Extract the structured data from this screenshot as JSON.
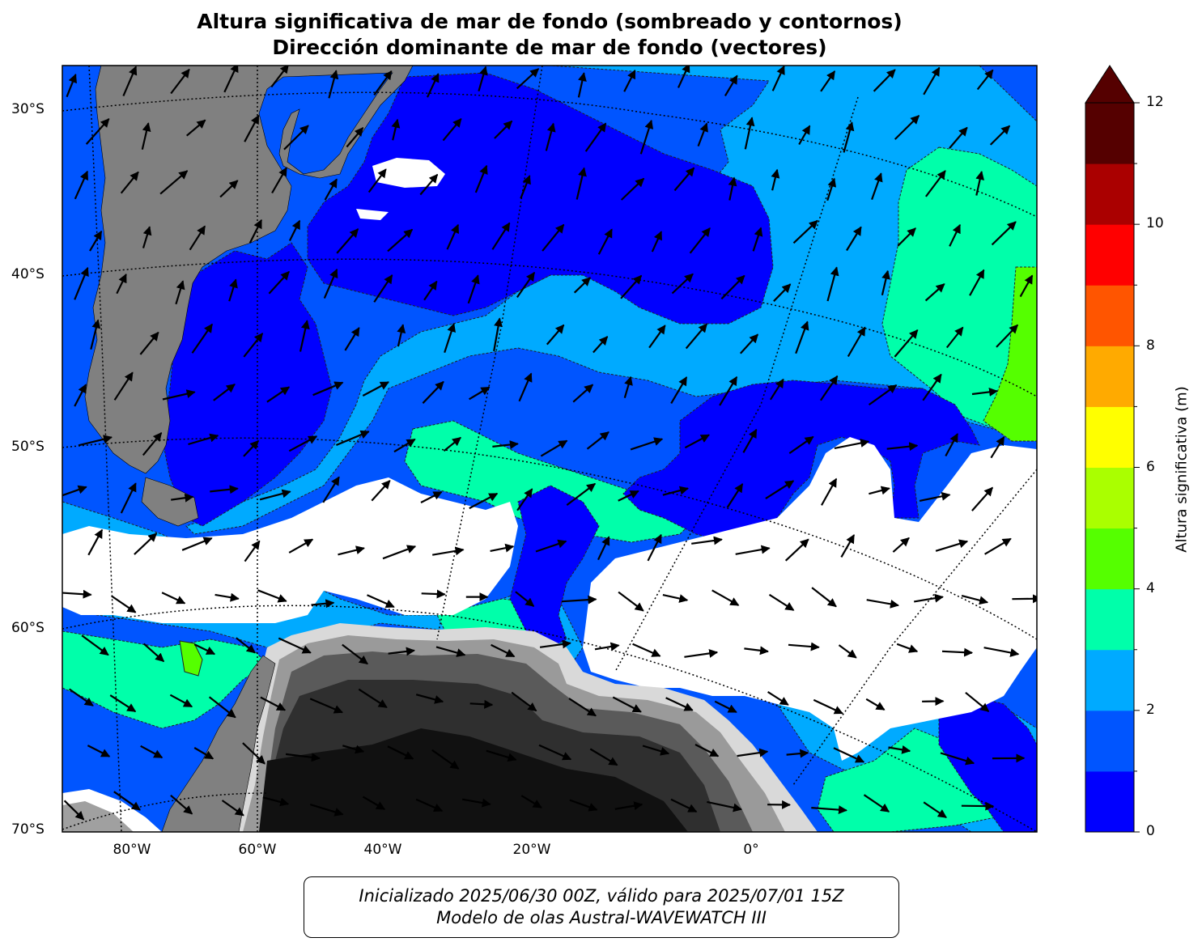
{
  "title": {
    "line1": "Altura significativa de mar de fondo (sombreado y contornos)",
    "line2": "Dirección dominante de mar de fondo (vectores)"
  },
  "map": {
    "lat_labels": [
      "30°S",
      "40°S",
      "50°S",
      "60°S",
      "70°S"
    ],
    "lon_labels": [
      "80°W",
      "60°W",
      "40°W",
      "20°W",
      "0°"
    ],
    "land_color": "#808080",
    "ice_color": "#ffffff",
    "region": "Atlántico Sur / Patagonia / Península Antártica"
  },
  "colorbar": {
    "title": "Altura significativa (m)",
    "tick_labels": [
      "0",
      "2",
      "4",
      "6",
      "8",
      "10",
      "12"
    ],
    "levels": [
      0,
      1,
      2,
      3,
      4,
      5,
      6,
      7,
      8,
      9,
      10,
      11,
      12
    ],
    "colors": [
      "#0000ff",
      "#0055ff",
      "#00aaff",
      "#00ffaa",
      "#55ff00",
      "#aaff00",
      "#ffff00",
      "#ffaa00",
      "#ff5500",
      "#ff0000",
      "#aa0000",
      "#550000"
    ],
    "extend": "max"
  },
  "footer": {
    "line1": "Inicializado 2025/06/30 00Z, válido para 2025/07/01 15Z",
    "line2": "Modelo de olas Austral-WAVEWATCH III"
  }
}
